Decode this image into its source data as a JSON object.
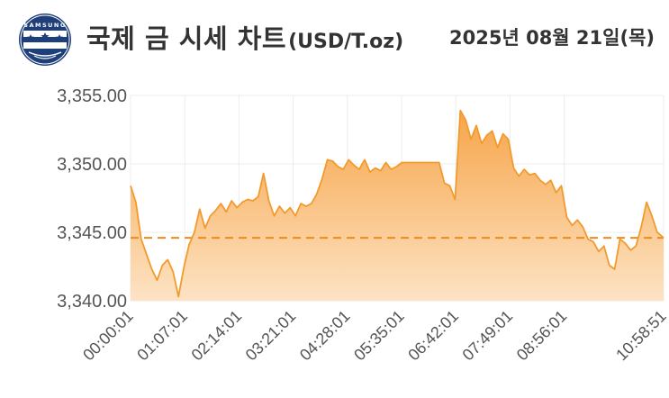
{
  "header": {
    "logo_text": "SAMSUNG",
    "title": "국제 금 시세 차트",
    "unit": "(USD/T.oz)",
    "date": "2025년 08월 21일(목)"
  },
  "colors": {
    "line": "#f39a2d",
    "fill_top": "#f6a54a",
    "fill_bottom": "#fde3c4",
    "ref_line": "#f08a1c",
    "grid": "#ececec",
    "logo_blue": "#1f3f7a"
  },
  "chart_data": {
    "type": "area",
    "title": "국제 금 시세 차트",
    "unit": "USD/T.oz",
    "xlabel": "",
    "ylabel": "",
    "ylim": [
      3340,
      3355
    ],
    "yticks": [
      3340,
      3345,
      3350,
      3355
    ],
    "ytick_labels": [
      "3,340.00",
      "3,345.00",
      "3,350.00",
      "3,355.00"
    ],
    "xlim": [
      "00:00:01",
      "10:58:51"
    ],
    "xtick_labels": [
      "00:00:01",
      "01:07:01",
      "02:14:01",
      "03:21:01",
      "04:28:01",
      "05:35:01",
      "06:42:01",
      "07:49:01",
      "08:56:01",
      "10:58:51"
    ],
    "reference_line": {
      "y": 3344.6,
      "style": "dashed"
    },
    "grid": true,
    "series": [
      {
        "x": [
          "00:00:01",
          "00:06:35",
          "00:13:10",
          "00:19:44",
          "00:26:19",
          "00:32:53",
          "00:39:28",
          "00:46:02",
          "00:52:37",
          "00:59:11",
          "01:05:46",
          "01:12:20",
          "01:18:55",
          "01:25:29",
          "01:32:04",
          "01:38:38",
          "01:45:13",
          "01:51:47",
          "01:58:22",
          "02:04:56",
          "02:11:31",
          "02:18:05",
          "02:24:40",
          "02:31:14",
          "02:37:49",
          "02:44:23",
          "02:50:58",
          "02:57:32",
          "03:04:07",
          "03:10:41",
          "03:17:16",
          "03:23:50",
          "03:30:25",
          "03:36:59",
          "03:43:34",
          "03:50:08",
          "03:56:43",
          "04:03:17",
          "04:09:52",
          "04:16:26",
          "04:23:01",
          "04:29:35",
          "04:36:10",
          "04:42:44",
          "04:49:19",
          "04:55:53",
          "05:02:28",
          "05:09:02",
          "05:15:37",
          "05:22:11",
          "05:28:46",
          "05:35:20",
          "05:41:55",
          "05:48:29",
          "05:55:04",
          "06:01:38",
          "06:08:13",
          "06:14:47",
          "06:21:22",
          "06:27:56",
          "06:34:31",
          "06:41:05",
          "06:47:40",
          "06:54:14",
          "07:00:49",
          "07:07:23",
          "07:13:58",
          "07:20:32",
          "07:27:07",
          "07:33:41",
          "07:40:16",
          "07:46:50",
          "07:53:25",
          "07:59:59",
          "08:06:34",
          "08:13:08",
          "08:19:43",
          "08:26:17",
          "08:32:52",
          "08:39:26",
          "08:46:01",
          "08:52:35",
          "08:59:10",
          "09:05:44",
          "09:12:19",
          "09:18:53",
          "09:25:28",
          "09:32:02",
          "09:38:37",
          "09:45:11",
          "09:51:46",
          "09:58:20",
          "10:04:55",
          "10:11:29",
          "10:18:04",
          "10:24:38",
          "10:31:13",
          "10:37:47",
          "10:44:22",
          "10:50:56",
          "10:58:51"
        ],
        "values": [
          3348.4,
          3347.2,
          3344.5,
          3343.4,
          3342.3,
          3341.5,
          3342.6,
          3343.0,
          3342.1,
          3340.3,
          3342.4,
          3344.1,
          3345.0,
          3346.7,
          3345.3,
          3346.2,
          3346.6,
          3347.1,
          3346.5,
          3347.3,
          3346.8,
          3347.2,
          3347.4,
          3347.3,
          3347.6,
          3349.3,
          3347.3,
          3346.2,
          3346.9,
          3346.4,
          3346.8,
          3346.2,
          3347.1,
          3346.9,
          3347.1,
          3347.8,
          3348.9,
          3350.3,
          3350.2,
          3349.8,
          3349.6,
          3350.3,
          3349.9,
          3349.6,
          3350.3,
          3349.4,
          3349.7,
          3349.5,
          3350.1,
          3349.6,
          3349.8,
          3350.1,
          3350.1,
          3350.1,
          3350.1,
          3350.1,
          3350.1,
          3350.1,
          3350.1,
          3348.6,
          3348.4,
          3347.4,
          3353.9,
          3353.2,
          3351.8,
          3352.8,
          3351.5,
          3352.1,
          3352.4,
          3351.2,
          3352.2,
          3351.8,
          3349.7,
          3349.1,
          3349.6,
          3349.2,
          3349.3,
          3348.8,
          3348.5,
          3348.8,
          3347.9,
          3348.4,
          3346.1,
          3345.5,
          3345.9,
          3345.4,
          3344.5,
          3344.3,
          3343.6,
          3344.0,
          3342.6,
          3342.3,
          3344.5,
          3344.2,
          3343.7,
          3344.0,
          3345.4,
          3347.2,
          3346.2,
          3345.0,
          3344.6
        ]
      }
    ]
  }
}
